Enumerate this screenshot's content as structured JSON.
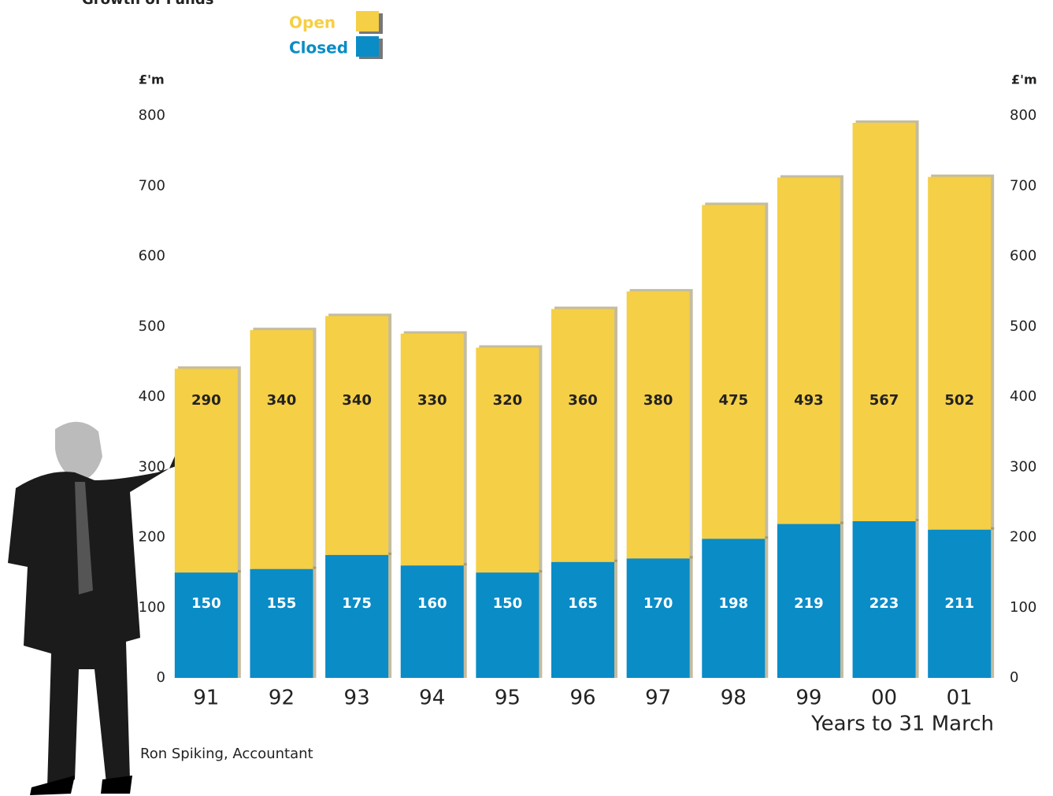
{
  "chart_data": {
    "type": "stacked_bar",
    "title": "Growth of Funds",
    "y_label": "£'m",
    "y2_label": "£'m",
    "x_label": "Years to 31 March",
    "caption": "Ron Spiking, Accountant",
    "categories": [
      "91",
      "92",
      "93",
      "94",
      "95",
      "96",
      "97",
      "98",
      "99",
      "00",
      "01"
    ],
    "series": [
      {
        "name": "Closed",
        "color": "#0a8cc7",
        "values": [
          150,
          155,
          175,
          160,
          150,
          165,
          170,
          198,
          219,
          223,
          211
        ]
      },
      {
        "name": "Open",
        "color": "#f5cf45",
        "values": [
          290,
          340,
          340,
          330,
          320,
          360,
          380,
          475,
          493,
          567,
          502
        ]
      }
    ],
    "ylim": [
      0,
      800
    ],
    "yticks": [
      0,
      100,
      200,
      300,
      400,
      500,
      600,
      700,
      800
    ],
    "y2lim": [
      0,
      800
    ],
    "y2ticks": [
      0,
      100,
      200,
      300,
      400,
      500,
      600,
      700,
      800
    ]
  }
}
